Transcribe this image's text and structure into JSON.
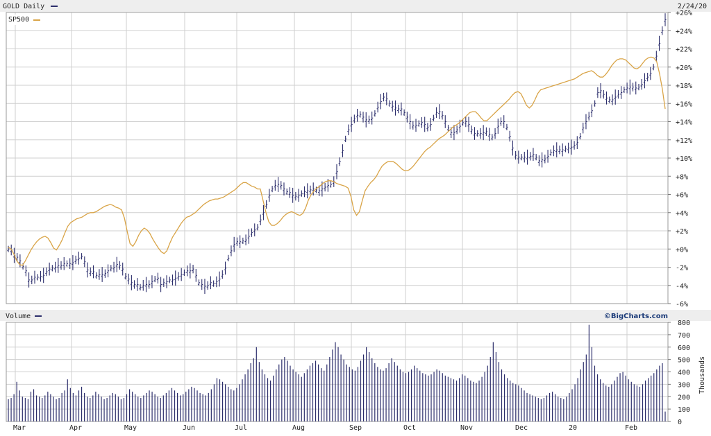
{
  "header": {
    "symbol_label": "GOLD Daily",
    "date_label": "2/24/20"
  },
  "legend": {
    "comparison_label": "SP500"
  },
  "volume_panel": {
    "label": "Volume",
    "brand": "©BigCharts.com",
    "unit_label": "Thousands"
  },
  "colors": {
    "primary": "#2b2d6b",
    "comparison": "#d9a447",
    "grid": "#cfcfcf",
    "header_bg": "#eeeeee"
  },
  "chart_data": [
    {
      "type": "line",
      "title": "GOLD Daily",
      "xlabel": "",
      "ylabel": "",
      "x_tick_labels": [
        "Mar",
        "Apr",
        "May",
        "Jun",
        "Jul",
        "Aug",
        "Sep",
        "Oct",
        "Nov",
        "Dec",
        "20",
        "Feb"
      ],
      "y_tick_labels": [
        "+26%",
        "+24%",
        "+22%",
        "+20%",
        "+18%",
        "+16%",
        "+14%",
        "+12%",
        "+10%",
        "+8%",
        "+6%",
        "+4%",
        "+2%",
        "+0%",
        "-2%",
        "-4%",
        "-6%"
      ],
      "ylim": [
        -6,
        26
      ],
      "grid": true,
      "legend_position": "top-left",
      "series": [
        {
          "name": "GOLD Daily",
          "style": "ohlc-bars",
          "values": [
            0.0,
            -0.1,
            -0.7,
            -0.9,
            -1.3,
            -1.9,
            -2.4,
            -3.4,
            -3.4,
            -3.1,
            -3.1,
            -3.0,
            -2.9,
            -2.5,
            -2.2,
            -2.1,
            -2.0,
            -1.8,
            -1.8,
            -1.6,
            -1.6,
            -1.6,
            -1.5,
            -1.2,
            -1.0,
            -0.8,
            -1.4,
            -2.3,
            -2.5,
            -2.5,
            -2.9,
            -2.8,
            -2.8,
            -2.7,
            -2.4,
            -2.1,
            -2.0,
            -1.7,
            -1.8,
            -2.2,
            -3.0,
            -3.3,
            -3.7,
            -3.9,
            -3.9,
            -4.2,
            -4.0,
            -3.9,
            -3.9,
            -3.6,
            -3.3,
            -3.2,
            -3.9,
            -3.7,
            -3.6,
            -3.4,
            -3.4,
            -3.2,
            -3.0,
            -2.8,
            -2.6,
            -2.4,
            -2.4,
            -2.2,
            -2.9,
            -3.7,
            -3.9,
            -4.1,
            -4.0,
            -3.7,
            -3.8,
            -3.6,
            -3.3,
            -2.8,
            -2.1,
            -1.0,
            -0.2,
            0.5,
            0.8,
            0.8,
            0.9,
            1.0,
            1.4,
            1.8,
            2.1,
            2.4,
            3.2,
            4.0,
            4.9,
            5.9,
            6.6,
            7.0,
            7.1,
            7.0,
            6.6,
            6.3,
            6.2,
            5.9,
            5.8,
            5.9,
            6.1,
            6.3,
            6.4,
            6.5,
            6.6,
            6.5,
            6.4,
            6.6,
            6.8,
            7.0,
            7.1,
            7.4,
            8.5,
            9.6,
            10.8,
            12.1,
            13.1,
            13.7,
            14.3,
            14.7,
            14.8,
            14.5,
            14.2,
            14.2,
            14.4,
            14.9,
            15.6,
            16.2,
            16.7,
            16.5,
            16.0,
            15.7,
            15.5,
            15.4,
            15.4,
            15.0,
            14.5,
            14.0,
            13.6,
            13.6,
            13.8,
            13.9,
            13.7,
            13.4,
            13.7,
            14.4,
            15.0,
            15.1,
            14.7,
            14.0,
            13.3,
            12.8,
            12.8,
            13.1,
            13.5,
            13.9,
            14.0,
            13.7,
            13.1,
            12.7,
            12.7,
            12.7,
            12.8,
            12.9,
            12.6,
            12.3,
            12.7,
            13.5,
            14.0,
            14.0,
            13.4,
            12.4,
            11.1,
            10.3,
            10.1,
            10.1,
            10.1,
            10.1,
            10.2,
            10.4,
            10.1,
            9.7,
            9.8,
            9.9,
            10.2,
            10.6,
            10.8,
            10.9,
            10.9,
            10.9,
            11.0,
            11.1,
            11.2,
            11.4,
            11.7,
            12.4,
            13.3,
            14.0,
            14.6,
            15.2,
            16.0,
            17.2,
            17.4,
            17.0,
            16.6,
            16.4,
            16.4,
            16.7,
            17.0,
            17.2,
            17.5,
            17.7,
            17.8,
            17.8,
            17.7,
            17.8,
            18.1,
            18.5,
            18.9,
            19.3,
            20.0,
            21.2,
            22.6,
            24.0,
            25.2
          ]
        },
        {
          "name": "SP500",
          "style": "line",
          "values": [
            0.2,
            0.0,
            -0.6,
            -1.3,
            -1.7,
            -1.8,
            -1.3,
            -0.7,
            -0.1,
            0.4,
            0.8,
            1.1,
            1.3,
            1.4,
            1.2,
            0.7,
            0.1,
            -0.1,
            0.4,
            1.0,
            1.8,
            2.5,
            2.9,
            3.1,
            3.3,
            3.4,
            3.5,
            3.7,
            3.9,
            4.0,
            4.0,
            4.1,
            4.3,
            4.5,
            4.7,
            4.8,
            4.9,
            4.8,
            4.6,
            4.5,
            4.3,
            3.4,
            1.9,
            0.6,
            0.3,
            0.8,
            1.5,
            2.0,
            2.3,
            2.1,
            1.7,
            1.1,
            0.6,
            0.1,
            -0.3,
            -0.5,
            -0.2,
            0.6,
            1.3,
            1.8,
            2.3,
            2.8,
            3.2,
            3.5,
            3.6,
            3.8,
            4.0,
            4.3,
            4.6,
            4.9,
            5.1,
            5.3,
            5.4,
            5.5,
            5.5,
            5.6,
            5.7,
            5.9,
            6.1,
            6.3,
            6.5,
            6.8,
            7.1,
            7.3,
            7.3,
            7.1,
            6.9,
            6.8,
            6.6,
            6.6,
            5.3,
            4.0,
            3.0,
            2.6,
            2.6,
            2.8,
            3.1,
            3.5,
            3.8,
            4.0,
            4.1,
            4.0,
            3.8,
            3.7,
            3.9,
            4.5,
            5.4,
            6.0,
            6.4,
            6.7,
            6.9,
            7.2,
            7.4,
            7.5,
            7.5,
            7.4,
            7.2,
            7.1,
            7.0,
            6.9,
            6.7,
            5.8,
            4.3,
            3.7,
            4.1,
            5.3,
            6.4,
            6.9,
            7.3,
            7.6,
            8.0,
            8.6,
            9.1,
            9.4,
            9.6,
            9.6,
            9.6,
            9.4,
            9.1,
            8.8,
            8.6,
            8.6,
            8.8,
            9.1,
            9.5,
            9.9,
            10.3,
            10.7,
            11.0,
            11.2,
            11.5,
            11.8,
            12.1,
            12.3,
            12.5,
            12.8,
            13.1,
            13.4,
            13.6,
            13.8,
            14.1,
            14.4,
            14.7,
            15.0,
            15.1,
            15.1,
            14.8,
            14.4,
            14.1,
            14.1,
            14.4,
            14.7,
            15.0,
            15.3,
            15.6,
            15.9,
            16.2,
            16.5,
            16.9,
            17.2,
            17.3,
            17.1,
            16.5,
            15.8,
            15.5,
            15.8,
            16.4,
            17.1,
            17.5,
            17.6,
            17.7,
            17.8,
            17.9,
            18.0,
            18.1,
            18.2,
            18.3,
            18.4,
            18.5,
            18.6,
            18.7,
            18.9,
            19.1,
            19.3,
            19.4,
            19.5,
            19.6,
            19.4,
            19.1,
            18.9,
            18.9,
            19.2,
            19.6,
            20.1,
            20.5,
            20.8,
            20.9,
            20.9,
            20.8,
            20.5,
            20.2,
            19.9,
            19.8,
            20.0,
            20.4,
            20.8,
            21.0,
            21.1,
            21.0,
            20.6,
            19.3,
            17.6,
            15.4
          ]
        }
      ]
    },
    {
      "type": "bar",
      "title": "Volume",
      "xlabel": "",
      "ylabel": "Thousands",
      "x_tick_labels": [
        "Mar",
        "Apr",
        "May",
        "Jun",
        "Jul",
        "Aug",
        "Sep",
        "Oct",
        "Nov",
        "Dec",
        "20",
        "Feb"
      ],
      "y_tick_labels": [
        "800",
        "700",
        "600",
        "500",
        "400",
        "300",
        "200",
        "100",
        "0"
      ],
      "ylim": [
        0,
        800
      ],
      "series": [
        {
          "name": "Volume",
          "values": [
            180,
            190,
            220,
            320,
            250,
            200,
            190,
            180,
            240,
            260,
            210,
            200,
            190,
            210,
            240,
            220,
            200,
            180,
            190,
            230,
            250,
            340,
            270,
            230,
            210,
            250,
            280,
            230,
            200,
            190,
            210,
            240,
            220,
            200,
            180,
            190,
            210,
            230,
            220,
            200,
            180,
            190,
            220,
            260,
            240,
            220,
            200,
            190,
            210,
            230,
            250,
            240,
            220,
            200,
            190,
            210,
            230,
            250,
            270,
            250,
            230,
            210,
            220,
            240,
            260,
            280,
            270,
            250,
            230,
            220,
            210,
            230,
            260,
            300,
            350,
            340,
            320,
            300,
            280,
            260,
            250,
            270,
            300,
            340,
            380,
            420,
            470,
            510,
            600,
            480,
            420,
            380,
            350,
            330,
            370,
            420,
            460,
            500,
            520,
            490,
            450,
            420,
            400,
            380,
            360,
            390,
            420,
            450,
            470,
            490,
            460,
            430,
            410,
            460,
            520,
            580,
            640,
            600,
            540,
            500,
            460,
            440,
            420,
            410,
            440,
            490,
            540,
            600,
            560,
            510,
            470,
            440,
            420,
            410,
            430,
            470,
            510,
            480,
            450,
            420,
            400,
            390,
            400,
            420,
            450,
            430,
            410,
            390,
            380,
            370,
            380,
            400,
            420,
            410,
            390,
            370,
            360,
            350,
            340,
            330,
            350,
            380,
            370,
            350,
            330,
            320,
            310,
            330,
            360,
            400,
            450,
            520,
            640,
            560,
            480,
            420,
            380,
            350,
            330,
            310,
            300,
            290,
            270,
            250,
            230,
            220,
            210,
            200,
            190,
            180,
            190,
            210,
            230,
            240,
            220,
            200,
            190,
            180,
            200,
            230,
            260,
            300,
            350,
            420,
            480,
            540,
            780,
            600,
            450,
            380,
            340,
            310,
            290,
            280,
            300,
            330,
            360,
            390,
            400,
            370,
            340,
            320,
            300,
            290,
            280,
            300,
            330,
            350,
            370,
            390,
            420,
            450,
            470,
            80
          ]
        }
      ]
    }
  ]
}
